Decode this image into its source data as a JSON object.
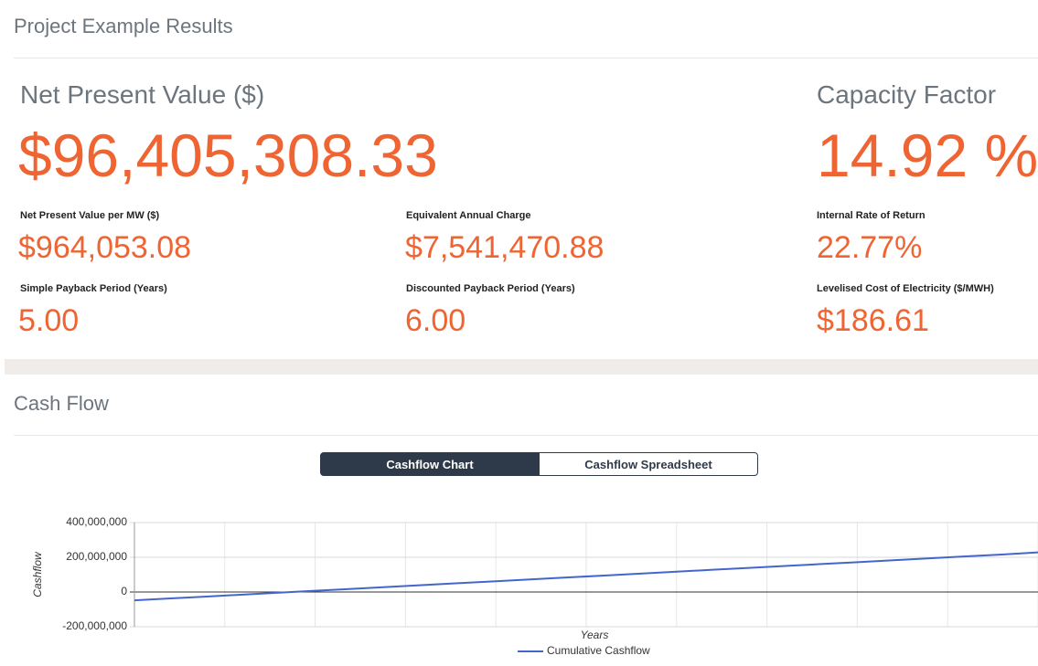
{
  "header": {
    "title": "Project Example Results"
  },
  "primary": [
    {
      "label": "Net Present Value ($)",
      "value": "$96,405,308.33"
    },
    {
      "label": "Capacity Factor",
      "value": "14.92 %"
    }
  ],
  "metrics": [
    {
      "label": "Net Present Value per MW ($)",
      "value": "$964,053.08"
    },
    {
      "label": "Equivalent Annual Charge",
      "value": "$7,541,470.88"
    },
    {
      "label": "Internal Rate of Return",
      "value": "22.77%"
    },
    {
      "label": "Simple Payback Period (Years)",
      "value": "5.00"
    },
    {
      "label": "Discounted Payback Period (Years)",
      "value": "6.00"
    },
    {
      "label": "Levelised Cost of Electricity ($/MWH)",
      "value": "$186.61"
    }
  ],
  "cashflow": {
    "title": "Cash Flow",
    "tabs": [
      "Cashflow Chart",
      "Cashflow Spreadsheet"
    ]
  },
  "chart_data": {
    "type": "line",
    "x_label": "Years",
    "y_label": "Cashflow",
    "x": [
      0,
      1,
      2,
      3,
      4,
      5,
      6,
      7,
      8,
      9,
      10,
      11,
      12,
      13,
      14,
      15,
      16,
      17,
      18,
      19,
      20,
      21,
      22,
      23,
      24,
      25
    ],
    "series": [
      {
        "name": "Cumulative Cashflow",
        "color": "#4466cc",
        "values": [
          -48000000,
          -37000000,
          -26000000,
          -15000000,
          -4000000,
          7000000,
          18000000,
          29000000,
          40000000,
          51000000,
          62000000,
          73000000,
          84000000,
          95000000,
          106000000,
          117000000,
          128000000,
          139000000,
          150000000,
          161000000,
          172000000,
          183000000,
          194000000,
          205000000,
          216000000,
          228000000
        ]
      }
    ],
    "xlim": [
      0,
      25
    ],
    "xticks": [
      0,
      2.5,
      5,
      7.5,
      10,
      12.5,
      15,
      17.5,
      20,
      22.5,
      25
    ],
    "ylim": [
      -200000000,
      400000000
    ],
    "yticks": [
      {
        "value": -200000000,
        "label": "-200,000,000"
      },
      0,
      {
        "value": 200000000,
        "label": "200,000,000"
      },
      {
        "value": 400000000,
        "label": "400,000,000"
      }
    ],
    "grid": true,
    "legend": "bottom"
  }
}
